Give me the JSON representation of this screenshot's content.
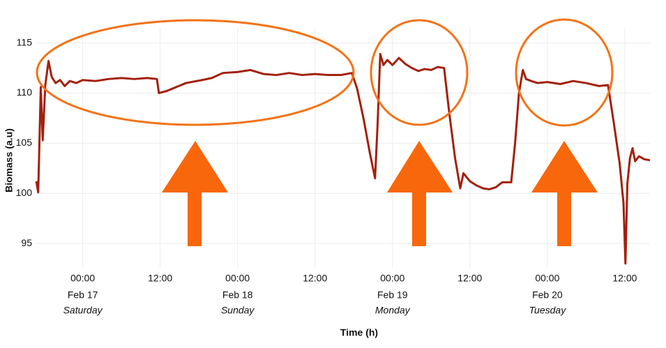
{
  "chart_data": {
    "type": "line",
    "x_label": "Time (h)",
    "y_label": "Biomass (a.u)",
    "xlim": [
      -7.2,
      87.9
    ],
    "ylim": [
      92.5,
      116.5
    ],
    "yticks": [
      95,
      100,
      105,
      110,
      115
    ],
    "xticks": [
      {
        "value": 0,
        "label": "00:00",
        "date": "Feb 17",
        "weekday": "Saturday"
      },
      {
        "value": 12,
        "label": "12:00"
      },
      {
        "value": 24,
        "label": "00:00",
        "date": "Feb 18",
        "weekday": "Sunday"
      },
      {
        "value": 36,
        "label": "12:00"
      },
      {
        "value": 48,
        "label": "00:00",
        "date": "Feb 19",
        "weekday": "Monday"
      },
      {
        "value": 60,
        "label": "12:00"
      },
      {
        "value": 72,
        "label": "00:00",
        "date": "Feb 20",
        "weekday": "Tuesday"
      },
      {
        "value": 84,
        "label": "12:00"
      }
    ],
    "grid": true,
    "series": [
      {
        "color": "#a3200c",
        "x": [
          -7.2,
          -6.9,
          -6.5,
          -6.2,
          -5.8,
          -5.3,
          -4.8,
          -4.2,
          -3.5,
          -2.8,
          -2,
          -1,
          0,
          2,
          4,
          6,
          8,
          10,
          11.5,
          11.8,
          13,
          14.5,
          16,
          18.5,
          20,
          21.7,
          24,
          26,
          28,
          30,
          32,
          34,
          36,
          38,
          40,
          41.7,
          42.5,
          43.5,
          44.5,
          45.3,
          45.7,
          46.1,
          46.6,
          47.2,
          48,
          49,
          50,
          51,
          52,
          53,
          54,
          55,
          56,
          56.8,
          57.7,
          58.5,
          59,
          60,
          61,
          62,
          63,
          64,
          65,
          66.4,
          67,
          67.6,
          68.2,
          68.7,
          69.5,
          70.5,
          72,
          74,
          76,
          78,
          80,
          81.4,
          82.3,
          83.2,
          83.8,
          84.1,
          84.4,
          84.8,
          85.2,
          85.6,
          86.2,
          87,
          87.9
        ],
        "values": [
          101.2,
          100.1,
          110.6,
          105.3,
          110.8,
          113.2,
          111.6,
          111.0,
          111.3,
          110.7,
          111.2,
          111.0,
          111.3,
          111.2,
          111.4,
          111.5,
          111.4,
          111.5,
          111.4,
          110.0,
          110.2,
          110.6,
          111.0,
          111.3,
          111.5,
          112.0,
          112.1,
          112.3,
          111.9,
          111.8,
          112.0,
          111.8,
          111.9,
          111.8,
          111.8,
          112.0,
          110.5,
          107.5,
          104.0,
          101.5,
          107,
          113.9,
          112.8,
          113.3,
          112.8,
          113.5,
          112.9,
          112.5,
          112.2,
          112.4,
          112.3,
          112.6,
          112.5,
          108,
          103.5,
          100.5,
          102.0,
          101.2,
          100.8,
          100.5,
          100.4,
          100.6,
          101.1,
          101.1,
          105,
          110,
          112.3,
          111.4,
          111.2,
          111.0,
          111.1,
          110.9,
          111.2,
          111.0,
          110.7,
          110.8,
          107,
          103,
          99,
          93,
          101,
          103.5,
          104.5,
          103.2,
          103.7,
          103.4,
          103.3
        ]
      }
    ]
  }
}
